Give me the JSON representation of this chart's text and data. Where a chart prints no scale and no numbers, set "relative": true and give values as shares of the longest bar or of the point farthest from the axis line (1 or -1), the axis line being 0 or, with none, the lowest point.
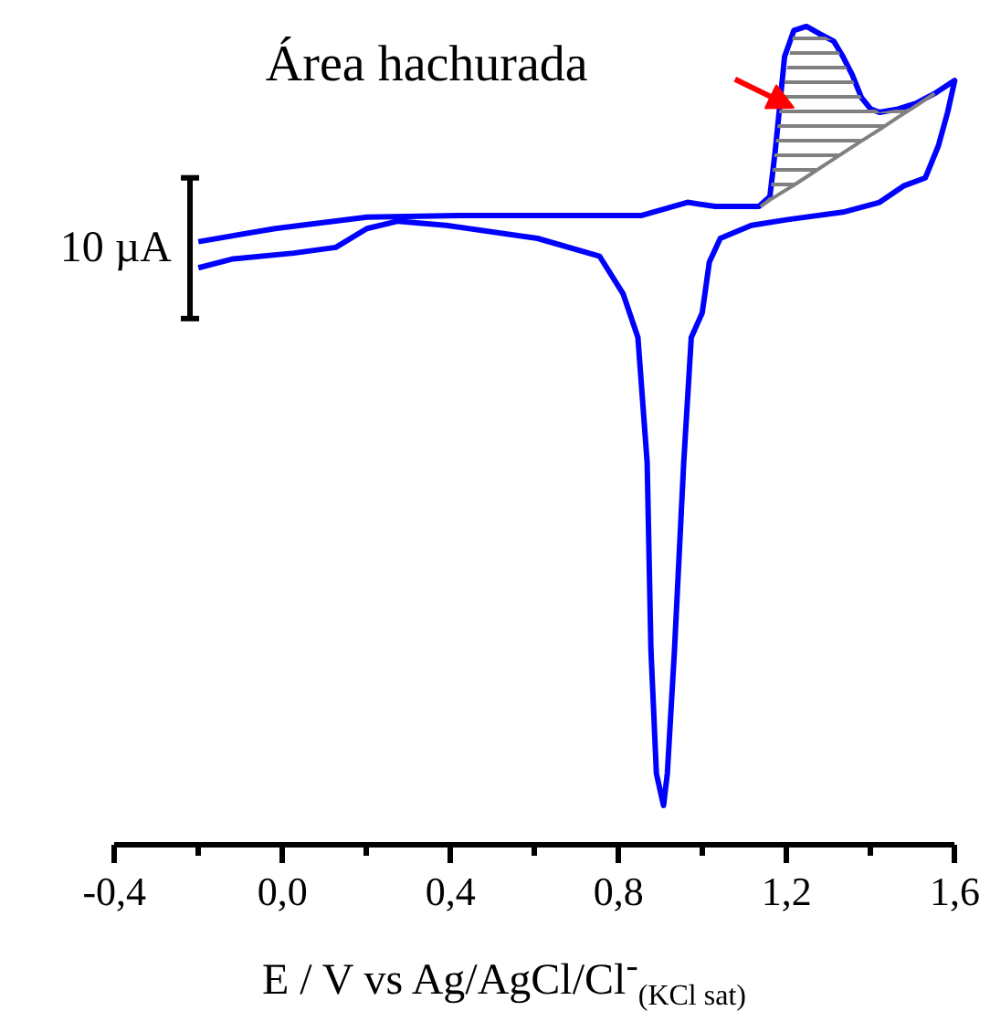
{
  "chart_data": {
    "type": "line",
    "relative": true,
    "xlabel": "E / V vs Ag/AgCl/Cl$^{-}$$_{(KCl sat)}$",
    "annotations": [
      "Área hachurada",
      "10 µA"
    ],
    "xlim": [
      -0.4,
      1.6
    ],
    "xticks": [
      {
        "value": -0.4,
        "label": "-0,4"
      },
      {
        "value": -0.2,
        "label": null
      },
      {
        "value": 0.0,
        "label": "0,0"
      },
      {
        "value": 0.2,
        "label": null
      },
      {
        "value": 0.4,
        "label": "0,4"
      },
      {
        "value": 0.6,
        "label": null
      },
      {
        "value": 0.8,
        "label": "0,8"
      },
      {
        "value": 1.0,
        "label": null
      },
      {
        "value": 1.2,
        "label": "1,2"
      },
      {
        "value": 1.4,
        "label": null
      },
      {
        "value": 1.6,
        "label": "1,6"
      }
    ],
    "series": [
      {
        "color": "#0000ff",
        "x": [
          -0.2,
          -0.017,
          0.201,
          0.419,
          0.637,
          0.855,
          0.964,
          1.03,
          1.134,
          1.16,
          1.173,
          1.182,
          1.195,
          1.217,
          1.247,
          1.278,
          1.312,
          1.334,
          1.356,
          1.378,
          1.4,
          1.421,
          1.465,
          1.508,
          1.552,
          1.6,
          1.583,
          1.561,
          1.53,
          1.478,
          1.421,
          1.334,
          1.203,
          1.116,
          1.042,
          1.016,
          0.999,
          0.973,
          0.955,
          0.933,
          0.916,
          0.907,
          0.89,
          0.877,
          0.868,
          0.846,
          0.811,
          0.755,
          0.607,
          0.389,
          0.275,
          0.201,
          0.127,
          0.027,
          -0.117,
          -0.2
        ],
        "values": [
          0.737,
          0.753,
          0.767,
          0.769,
          0.769,
          0.769,
          0.785,
          0.78,
          0.78,
          0.792,
          0.849,
          0.895,
          0.963,
          0.995,
          1.0,
          0.991,
          0.982,
          0.963,
          0.941,
          0.913,
          0.899,
          0.895,
          0.899,
          0.906,
          0.918,
          0.934,
          0.895,
          0.854,
          0.815,
          0.805,
          0.785,
          0.773,
          0.764,
          0.757,
          0.741,
          0.712,
          0.65,
          0.62,
          0.467,
          0.238,
          0.087,
          0.048,
          0.087,
          0.238,
          0.467,
          0.62,
          0.673,
          0.719,
          0.741,
          0.757,
          0.762,
          0.753,
          0.73,
          0.723,
          0.716,
          0.705
        ]
      },
      {
        "type": "line",
        "color": "#808080",
        "x": [
          1.138,
          1.16,
          1.182,
          1.217,
          1.247,
          1.312,
          1.378,
          1.421,
          1.465,
          1.508,
          1.552
        ],
        "values": [
          0.78,
          0.788,
          0.795,
          0.806,
          0.816,
          0.838,
          0.86,
          0.874,
          0.889,
          0.903,
          0.918
        ],
        "lower": [
          0.78,
          0.788,
          0.795,
          0.806,
          0.816,
          0.838,
          0.86,
          0.874,
          0.889,
          0.903,
          0.918
        ],
        "upper": [
          0.78,
          0.792,
          0.895,
          0.995,
          1.0,
          0.982,
          0.913,
          0.895,
          0.899,
          0.906,
          0.918
        ]
      }
    ]
  }
}
